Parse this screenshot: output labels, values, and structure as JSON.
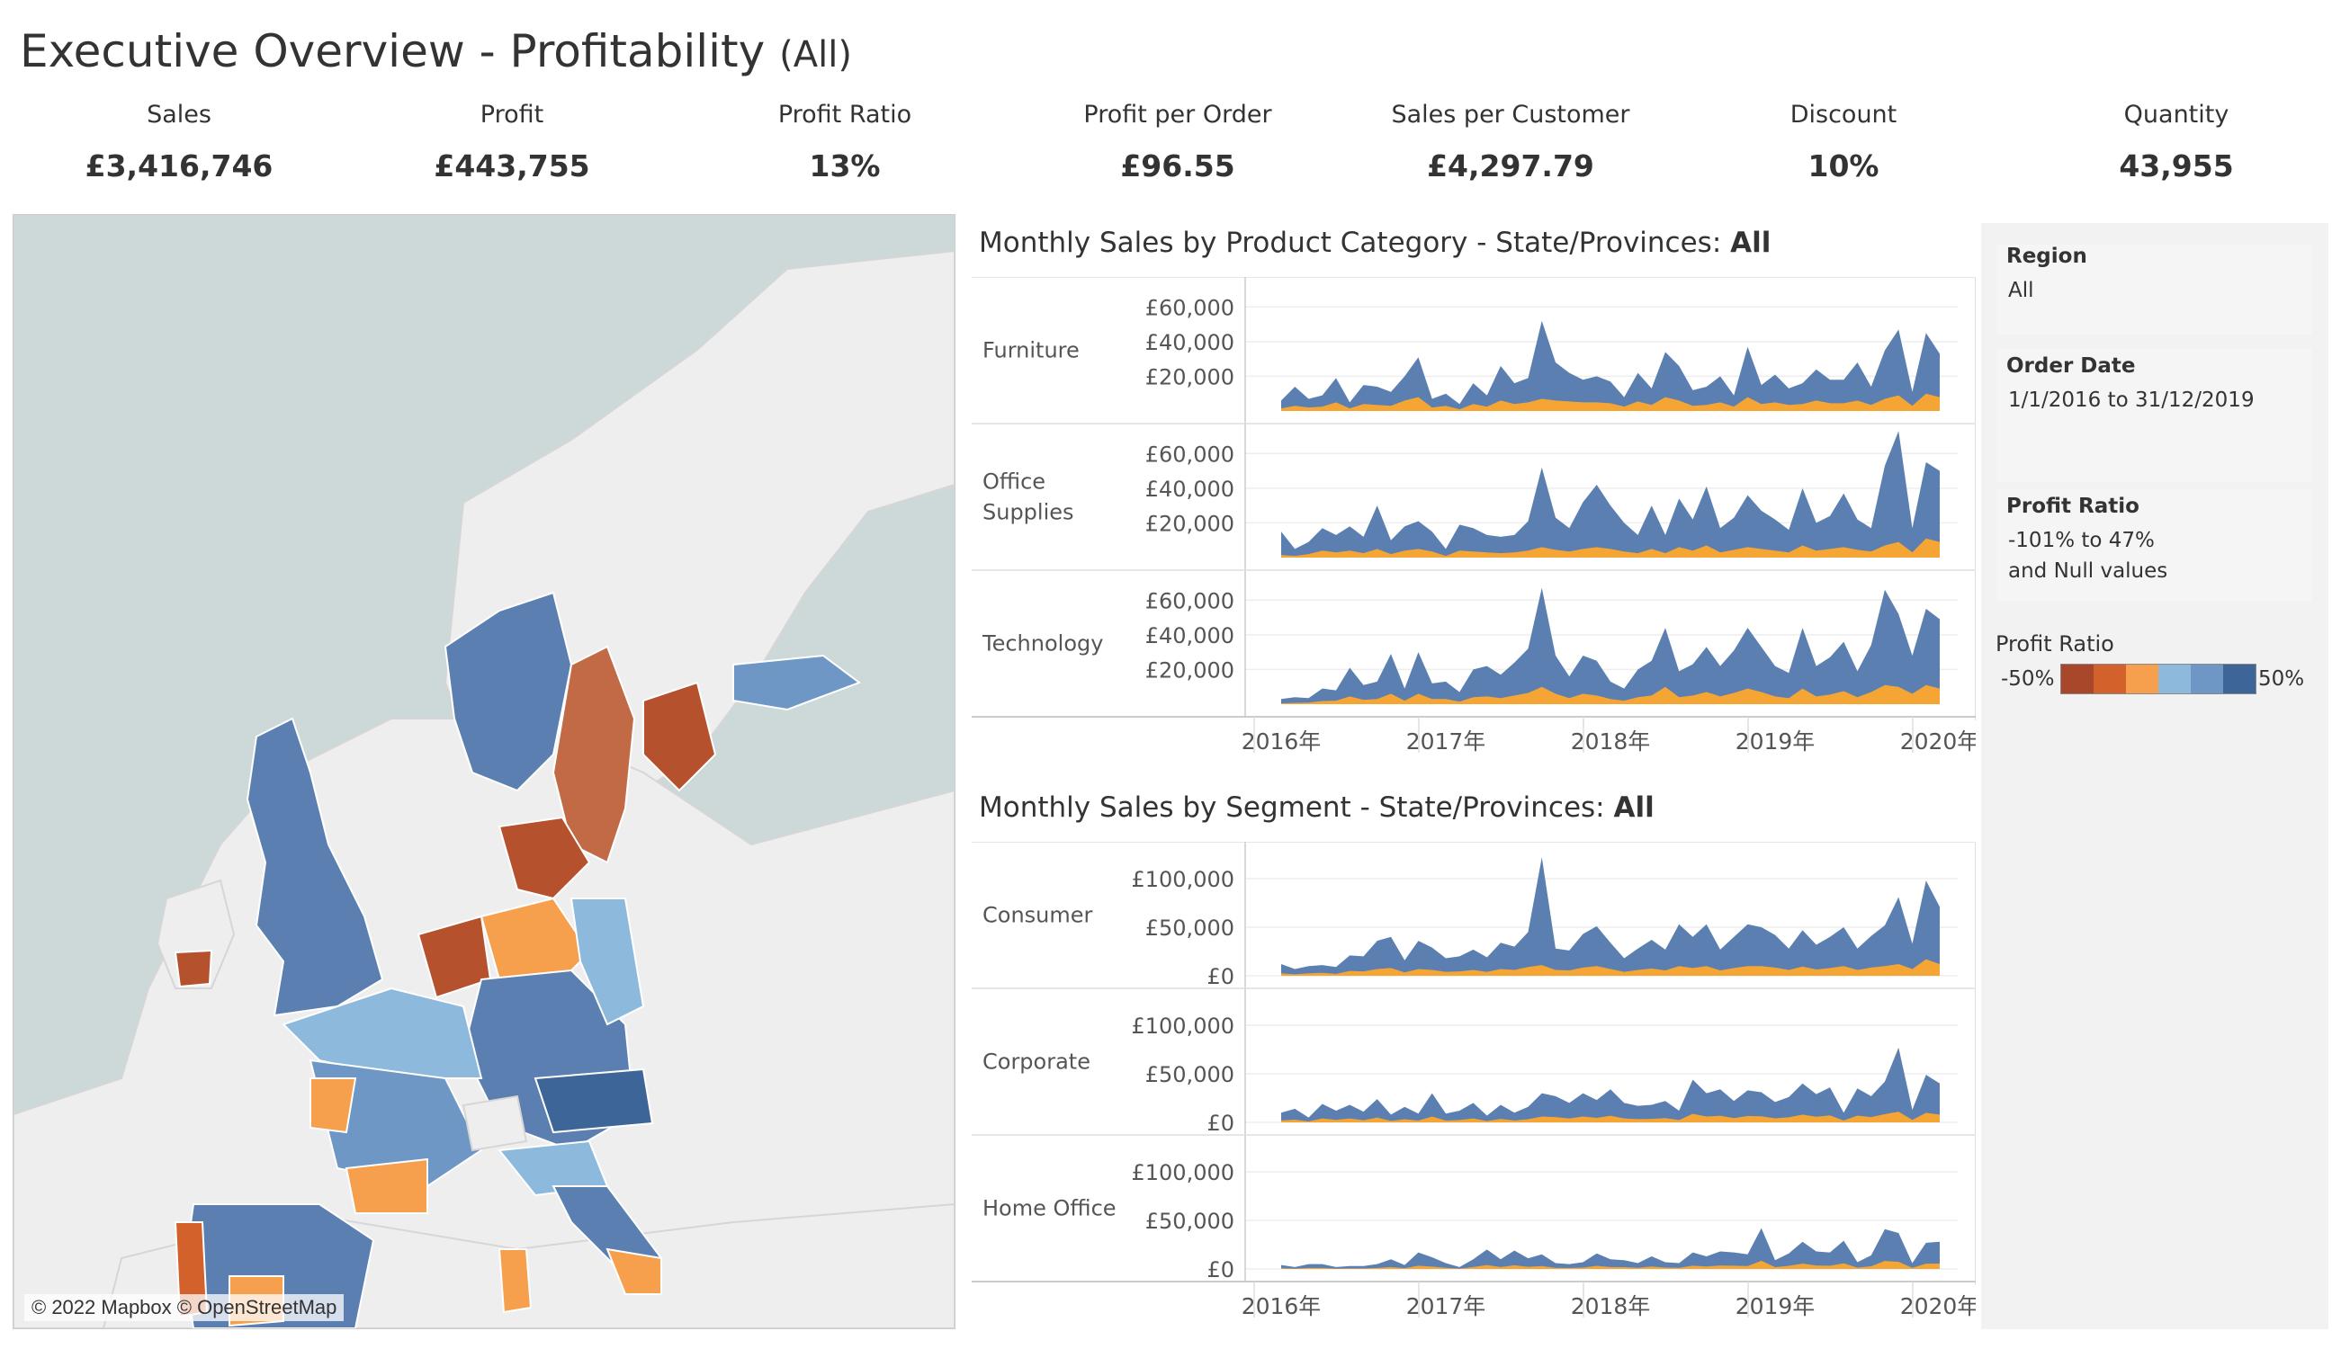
{
  "header": {
    "title": "Executive Overview - Profitability",
    "filter": "(All)"
  },
  "kpis": [
    {
      "label": "Sales",
      "value": "£3,416,746"
    },
    {
      "label": "Profit",
      "value": "£443,755"
    },
    {
      "label": "Profit Ratio",
      "value": "13%"
    },
    {
      "label": "Profit per Order",
      "value": "£96.55"
    },
    {
      "label": "Sales per Customer",
      "value": "£4,297.79"
    },
    {
      "label": "Discount",
      "value": "10%"
    },
    {
      "label": "Quantity",
      "value": "43,955"
    }
  ],
  "map": {
    "credit": "© 2022 Mapbox © OpenStreetMap"
  },
  "colors": {
    "series_total": "#5b7fb0",
    "series_profit": "#f5a534",
    "neg_dark": "#b5512d",
    "pos_dark": "#3e6597"
  },
  "sections": {
    "category": {
      "title": "Monthly Sales by Product Category - State/Provinces: ",
      "title_bold": "All"
    },
    "segment": {
      "title": "Monthly Sales by Segment - State/Provinces: ",
      "title_bold": "All"
    }
  },
  "filters": {
    "region": {
      "label": "Region",
      "value": "All"
    },
    "order_date": {
      "label": "Order Date",
      "value": "1/1/2016 to 31/12/2019"
    },
    "profit_ratio": {
      "label": "Profit Ratio",
      "value": "-101% to 47%\nand Null values"
    }
  },
  "legend": {
    "title": "Profit Ratio",
    "low": "-50%",
    "high": "50%",
    "colors": [
      "#a8472a",
      "#d3612b",
      "#f6a04d",
      "#8db9dc",
      "#6f97c5",
      "#3e6597"
    ]
  },
  "chart_data": [
    {
      "type": "area",
      "title": "Monthly Sales by Product Category - State/Provinces: All",
      "x_ticks": [
        "2016年",
        "2017年",
        "2018年",
        "2019年",
        "2020年"
      ],
      "x_start": "2016-01",
      "y_ticks": [
        "£20,000",
        "£40,000",
        "£60,000"
      ],
      "ylim": [
        0,
        70000
      ],
      "panels": [
        {
          "name": "Furniture",
          "sales": [
            6000,
            14000,
            7000,
            9000,
            19000,
            5000,
            15000,
            14000,
            11000,
            20000,
            31000,
            7000,
            10000,
            4000,
            16000,
            9000,
            26000,
            16000,
            19000,
            52000,
            28000,
            22000,
            18000,
            20000,
            17000,
            8000,
            22000,
            13000,
            34000,
            26000,
            12000,
            14000,
            20000,
            9000,
            37000,
            15000,
            21000,
            13000,
            16000,
            24000,
            18000,
            18000,
            28000,
            14000,
            35000,
            47000,
            11000,
            45000,
            33000
          ],
          "profit": [
            1500,
            3000,
            2000,
            2500,
            5000,
            1500,
            4000,
            3500,
            3000,
            6000,
            8000,
            2000,
            3000,
            1000,
            4000,
            2500,
            6000,
            4000,
            5000,
            7000,
            6000,
            5500,
            5000,
            5000,
            4500,
            2500,
            5500,
            3500,
            8000,
            6000,
            3000,
            3500,
            5000,
            2500,
            8000,
            4000,
            5000,
            3500,
            4000,
            6000,
            4500,
            4500,
            6000,
            3500,
            7000,
            9000,
            3000,
            10000,
            8000
          ]
        },
        {
          "name": "Office\nSupplies",
          "sales": [
            15000,
            5000,
            9000,
            17000,
            13000,
            18000,
            12000,
            30000,
            10000,
            18000,
            21000,
            15000,
            5000,
            19000,
            17000,
            13000,
            12000,
            13000,
            21000,
            52000,
            23000,
            17000,
            32000,
            42000,
            30000,
            20000,
            13000,
            30000,
            13000,
            34000,
            22000,
            41000,
            17000,
            23000,
            36000,
            27000,
            22000,
            16000,
            40000,
            20000,
            24000,
            37000,
            22000,
            17000,
            53000,
            73000,
            17000,
            55000,
            50000
          ],
          "profit": [
            1500,
            1000,
            2000,
            4000,
            3000,
            4000,
            2500,
            5000,
            2000,
            4000,
            5000,
            3500,
            1000,
            4000,
            3500,
            3000,
            2500,
            3000,
            4000,
            6000,
            4500,
            3500,
            5000,
            6000,
            5000,
            3500,
            2500,
            5000,
            2500,
            6000,
            4000,
            7000,
            3000,
            4500,
            6000,
            5000,
            4000,
            3000,
            7000,
            4000,
            5000,
            6000,
            4500,
            3500,
            7000,
            9000,
            3000,
            11000,
            9000
          ]
        },
        {
          "name": "Technology",
          "sales": [
            3000,
            4000,
            3500,
            9000,
            8000,
            21000,
            11000,
            13000,
            29000,
            9000,
            30000,
            12000,
            13000,
            7000,
            20000,
            22000,
            17000,
            24000,
            32000,
            67000,
            28000,
            16000,
            28000,
            25000,
            13000,
            9000,
            20000,
            25000,
            44000,
            19000,
            23000,
            33000,
            22000,
            31000,
            44000,
            33000,
            22000,
            18000,
            44000,
            22000,
            27000,
            36000,
            19000,
            34000,
            66000,
            52000,
            28000,
            55000,
            49000
          ],
          "profit": [
            500,
            800,
            900,
            1800,
            2000,
            4500,
            2500,
            3000,
            6000,
            2000,
            6000,
            3000,
            3000,
            1500,
            4000,
            4500,
            3500,
            5000,
            6500,
            10000,
            6000,
            3500,
            6000,
            5000,
            3000,
            2000,
            4000,
            5000,
            10000,
            4000,
            5000,
            7000,
            4500,
            6500,
            9000,
            7000,
            4500,
            3500,
            9000,
            4500,
            5500,
            7500,
            4000,
            7000,
            11000,
            10000,
            6000,
            11000,
            9000
          ]
        }
      ]
    },
    {
      "type": "area",
      "title": "Monthly Sales by Segment - State/Provinces: All",
      "x_ticks": [
        "2016年",
        "2017年",
        "2018年",
        "2019年",
        "2020年"
      ],
      "x_start": "2016-01",
      "y_ticks": [
        "£0",
        "£50,000",
        "£100,000"
      ],
      "ylim": [
        0,
        125000
      ],
      "panels": [
        {
          "name": "Consumer",
          "sales": [
            12000,
            7000,
            10000,
            11000,
            9000,
            21000,
            20000,
            36000,
            40000,
            16000,
            36000,
            29000,
            18000,
            20000,
            27000,
            19000,
            34000,
            30000,
            45000,
            122000,
            28000,
            26000,
            43000,
            51000,
            34000,
            18000,
            28000,
            37000,
            27000,
            53000,
            40000,
            53000,
            27000,
            40000,
            53000,
            50000,
            42000,
            28000,
            47000,
            32000,
            40000,
            50000,
            28000,
            41000,
            52000,
            81000,
            33000,
            98000,
            71000
          ],
          "profit": [
            2500,
            1500,
            2500,
            3000,
            2000,
            5000,
            4500,
            7000,
            8000,
            3500,
            7000,
            6000,
            4000,
            4500,
            6000,
            4000,
            7000,
            6000,
            9000,
            11000,
            6000,
            5500,
            8500,
            10000,
            7000,
            4000,
            6000,
            7500,
            5500,
            10000,
            8000,
            10000,
            5500,
            8000,
            10000,
            10000,
            8500,
            6000,
            9500,
            6500,
            8000,
            10000,
            6000,
            8500,
            10000,
            12000,
            7000,
            17000,
            12000
          ]
        },
        {
          "name": "Corporate",
          "sales": [
            10000,
            14000,
            5000,
            19000,
            12000,
            18000,
            11000,
            24000,
            8000,
            16000,
            9000,
            30000,
            9000,
            12000,
            20000,
            7000,
            18000,
            10000,
            16000,
            30000,
            27000,
            20000,
            30000,
            23000,
            34000,
            20000,
            17000,
            18000,
            22000,
            12000,
            44000,
            30000,
            34000,
            22000,
            33000,
            31000,
            21000,
            26000,
            40000,
            29000,
            36000,
            10000,
            35000,
            27000,
            42000,
            77000,
            13000,
            49000,
            40000
          ],
          "profit": [
            2000,
            2800,
            1000,
            4000,
            2500,
            4000,
            2200,
            5000,
            1500,
            3200,
            1800,
            6000,
            1800,
            2400,
            4000,
            1400,
            3600,
            2000,
            3200,
            6000,
            5400,
            4000,
            6000,
            4600,
            6800,
            4000,
            3400,
            3600,
            4400,
            2400,
            8800,
            6000,
            6800,
            4400,
            6600,
            6200,
            4200,
            5200,
            8000,
            5800,
            7200,
            2000,
            7000,
            5400,
            8400,
            11000,
            2600,
            9800,
            8000
          ]
        },
        {
          "name": "Home Office",
          "sales": [
            4000,
            2000,
            5000,
            5000,
            2000,
            3000,
            3000,
            5000,
            10000,
            4000,
            17000,
            12000,
            6000,
            2000,
            10000,
            20000,
            10000,
            19000,
            11000,
            15000,
            6000,
            5000,
            7000,
            16000,
            10000,
            9000,
            6000,
            13000,
            7000,
            6000,
            17000,
            13000,
            18000,
            17000,
            15000,
            42000,
            9000,
            16000,
            28000,
            18000,
            17000,
            29000,
            7000,
            14000,
            41000,
            37000,
            6000,
            27000,
            28000
          ],
          "profit": [
            800,
            400,
            1000,
            1000,
            400,
            600,
            600,
            1000,
            2000,
            800,
            3400,
            2400,
            1200,
            400,
            2000,
            4000,
            2000,
            3800,
            2200,
            3000,
            1200,
            1000,
            1400,
            3200,
            2000,
            1800,
            1200,
            2600,
            1400,
            1200,
            3400,
            2600,
            3600,
            3400,
            3000,
            8400,
            1800,
            3200,
            5600,
            3600,
            3400,
            5800,
            1400,
            2800,
            8200,
            7400,
            1200,
            5400,
            5600
          ]
        }
      ]
    }
  ]
}
